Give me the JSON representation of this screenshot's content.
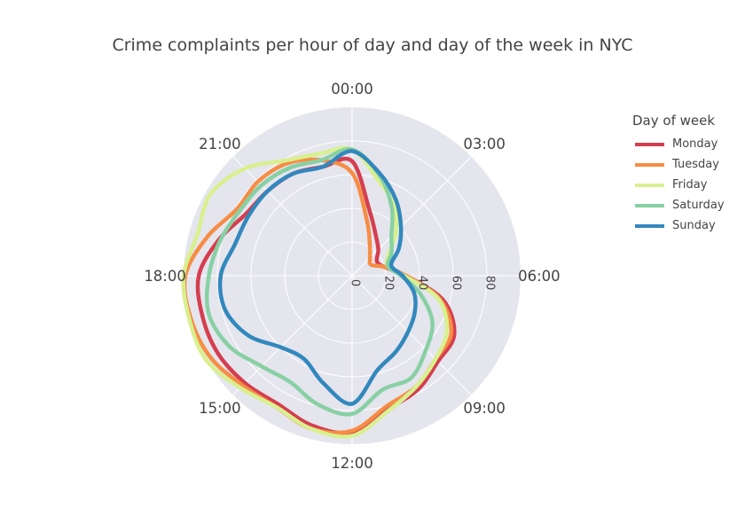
{
  "chart_data": {
    "type": "line",
    "polar": true,
    "title": "Crime complaints per hour of day and day of the week in NYC",
    "angular_ticks": [
      "00:00",
      "03:00",
      "06:00",
      "09:00",
      "12:00",
      "15:00",
      "18:00",
      "21:00"
    ],
    "radial_ticks": [
      "0",
      "20",
      "40",
      "60",
      "80"
    ],
    "radial_range": [
      0,
      100
    ],
    "legend_title": "Day of week",
    "legend_position": "top-right",
    "grid": true,
    "x": [
      "00:00",
      "01:00",
      "02:00",
      "03:00",
      "04:00",
      "05:00",
      "06:00",
      "07:00",
      "08:00",
      "09:00",
      "10:00",
      "11:00",
      "12:00",
      "13:00",
      "14:00",
      "15:00",
      "16:00",
      "17:00",
      "18:00",
      "19:00",
      "20:00",
      "21:00",
      "22:00",
      "23:00"
    ],
    "series": [
      {
        "name": "Monday",
        "color": "#d53e4f",
        "values": [
          68,
          40,
          28,
          22,
          17,
          20,
          32,
          56,
          70,
          72,
          78,
          82,
          93,
          92,
          88,
          90,
          92,
          92,
          91,
          82,
          73,
          71,
          70,
          67
        ]
      },
      {
        "name": "Tuesday",
        "color": "#f68d45",
        "values": [
          61,
          34,
          21,
          15,
          13,
          20,
          32,
          54,
          68,
          70,
          76,
          80,
          92,
          94,
          90,
          92,
          97,
          99,
          99,
          89,
          79,
          79,
          77,
          71
        ]
      },
      {
        "name": "Friday",
        "color": "#d8f08f",
        "values": [
          75,
          59,
          49,
          37,
          25,
          22,
          31,
          53,
          65,
          70,
          76,
          83,
          95,
          94,
          90,
          94,
          100,
          100,
          100,
          95,
          97,
          90,
          79,
          75
        ]
      },
      {
        "name": "Saturday",
        "color": "#88d0a4",
        "values": [
          75,
          62,
          47,
          33,
          27,
          22,
          29,
          42,
          55,
          62,
          70,
          70,
          82,
          79,
          73,
          76,
          84,
          88,
          85,
          81,
          77,
          76,
          74,
          71
        ]
      },
      {
        "name": "Sunday",
        "color": "#3288bd",
        "values": [
          74,
          63,
          52,
          41,
          32,
          24,
          30,
          38,
          43,
          47,
          52,
          58,
          76,
          66,
          57,
          60,
          71,
          78,
          78,
          72,
          71,
          71,
          70,
          67
        ]
      }
    ]
  }
}
